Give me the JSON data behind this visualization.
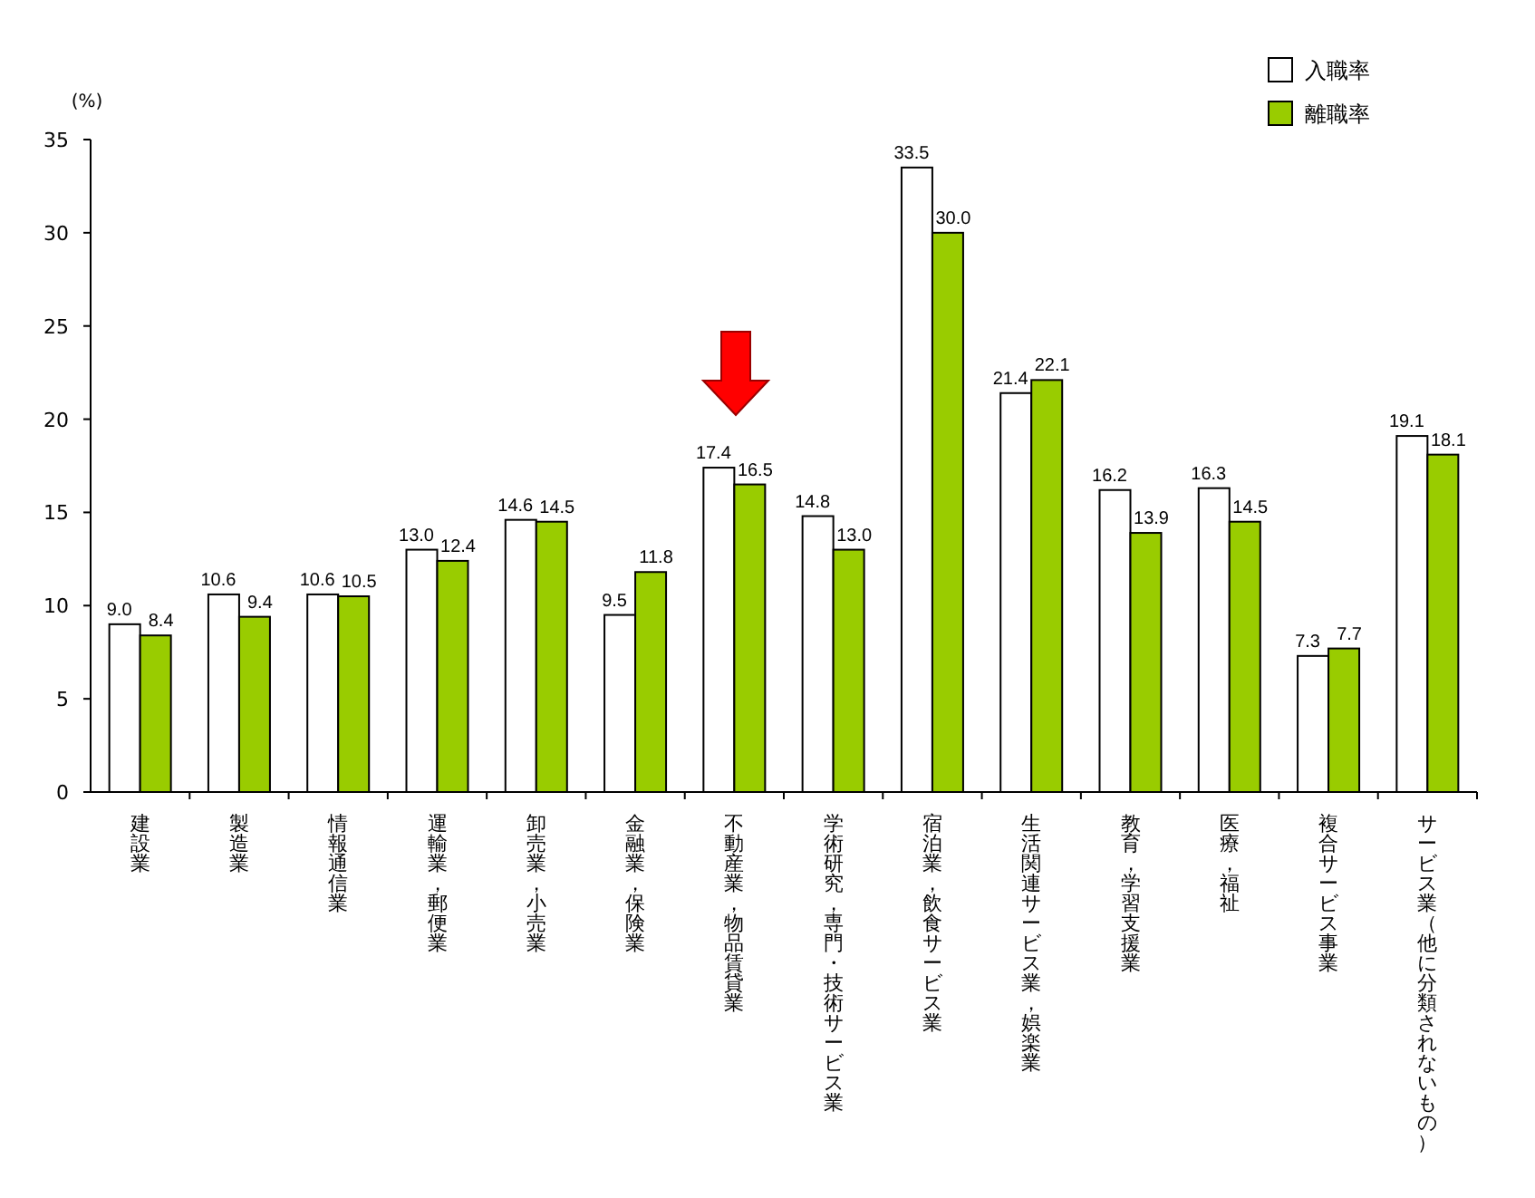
{
  "chart_data": {
    "type": "bar",
    "ylabel": "(%)",
    "categories": [
      "建設業",
      "製造業",
      "情報通信業",
      "運輸業，郵便業",
      "卸売業，小売業",
      "金融業，保険業",
      "不動産業，物品賃貸業",
      "学術研究，専門・技術サービス業",
      "宿泊業，飲食サービス業",
      "生活関連サービス業，娯楽業",
      "教育，学習支援業",
      "医療，福祉",
      "複合サービス事業",
      "サービス業（他に分類されないもの）"
    ],
    "series": [
      {
        "name": "入職率",
        "color": "#ffffff",
        "values": [
          9.0,
          10.6,
          10.6,
          13.0,
          14.6,
          9.5,
          17.4,
          14.8,
          33.5,
          21.4,
          16.2,
          16.3,
          7.3,
          19.1
        ],
        "value_labels": [
          "9.0",
          "10.6",
          "10.6",
          "13.0",
          "14.6",
          "9.5",
          "17.4",
          "14.8",
          "33.5",
          "21.4",
          "16.2",
          "16.3",
          "7.3",
          "19.1"
        ]
      },
      {
        "name": "離職率",
        "color": "#99cc00",
        "values": [
          8.4,
          9.4,
          10.5,
          12.4,
          14.5,
          11.8,
          16.5,
          13.0,
          30.0,
          22.1,
          13.9,
          14.5,
          7.7,
          18.1
        ],
        "value_labels": [
          "8.4",
          "9.4",
          "10.5",
          "12.4",
          "14.5",
          "11.8",
          "16.5",
          "13.0",
          "30.0",
          "22.1",
          "13.9",
          "14.5",
          "7.7",
          "18.1"
        ]
      }
    ],
    "ylim": [
      0,
      35
    ],
    "yticks": [
      0,
      5,
      10,
      15,
      20,
      25,
      30,
      35
    ],
    "legend": "top right",
    "grid": false
  }
}
